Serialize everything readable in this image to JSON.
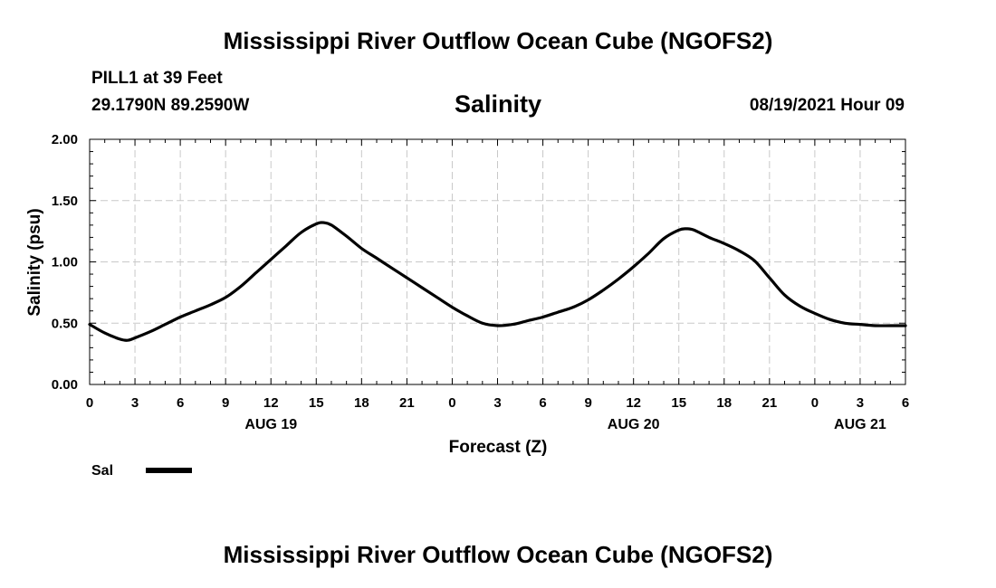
{
  "header": {
    "title": "Mississippi River Outflow Ocean Cube (NGOFS2)",
    "station": "PILL1 at 39 Feet",
    "coords": "29.1790N  89.2590W",
    "valid_time": "08/19/2021 Hour 09"
  },
  "footer": {
    "title": "Mississippi River Outflow Ocean Cube (NGOFS2)"
  },
  "chart_data": {
    "type": "line",
    "title": "Salinity",
    "xlabel": "Forecast (Z)",
    "ylabel": "Salinity (psu)",
    "ylim": [
      0,
      2
    ],
    "xlim": [
      0,
      54
    ],
    "grid": true,
    "x_unit": "hours since Aug 19 00Z",
    "yticks": [
      "0.00",
      "0.50",
      "1.00",
      "1.50",
      "2.00"
    ],
    "ytick_values": [
      0,
      0.5,
      1.0,
      1.5,
      2.0
    ],
    "xtick_values": [
      0,
      3,
      6,
      9,
      12,
      15,
      18,
      21,
      24,
      27,
      30,
      33,
      36,
      39,
      42,
      45,
      48,
      51,
      54
    ],
    "xtick_labels": [
      "0",
      "3",
      "6",
      "9",
      "12",
      "15",
      "18",
      "21",
      "0",
      "3",
      "6",
      "9",
      "12",
      "15",
      "18",
      "21",
      "0",
      "3",
      "6"
    ],
    "day_labels": [
      {
        "x": 12,
        "label": "AUG 19"
      },
      {
        "x": 36,
        "label": "AUG 20"
      },
      {
        "x": 51,
        "label": "AUG 21"
      }
    ],
    "series": [
      {
        "name": "Sal",
        "color": "#000000",
        "x": [
          0,
          1,
          2,
          2.5,
          3,
          4,
          5,
          6,
          7,
          8,
          9,
          10,
          11,
          12,
          13,
          14,
          15,
          15.5,
          16,
          17,
          18,
          19,
          20,
          21,
          22,
          23,
          24,
          25,
          26,
          27,
          28,
          29,
          30,
          31,
          32,
          33,
          34,
          35,
          36,
          37,
          38,
          39,
          39.5,
          40,
          41,
          42,
          43,
          44,
          45,
          46,
          47,
          48,
          49,
          50,
          51,
          52,
          53,
          54
        ],
        "values": [
          0.49,
          0.42,
          0.37,
          0.36,
          0.38,
          0.43,
          0.49,
          0.55,
          0.6,
          0.65,
          0.71,
          0.8,
          0.91,
          1.02,
          1.13,
          1.24,
          1.31,
          1.32,
          1.3,
          1.21,
          1.11,
          1.03,
          0.95,
          0.87,
          0.79,
          0.71,
          0.63,
          0.56,
          0.5,
          0.48,
          0.49,
          0.52,
          0.55,
          0.59,
          0.63,
          0.69,
          0.77,
          0.86,
          0.96,
          1.07,
          1.19,
          1.26,
          1.27,
          1.26,
          1.2,
          1.15,
          1.09,
          1.01,
          0.87,
          0.73,
          0.64,
          0.58,
          0.53,
          0.5,
          0.49,
          0.48,
          0.48,
          0.48
        ]
      }
    ],
    "legend": {
      "label": "Sal",
      "placement": "bottom-left"
    }
  }
}
